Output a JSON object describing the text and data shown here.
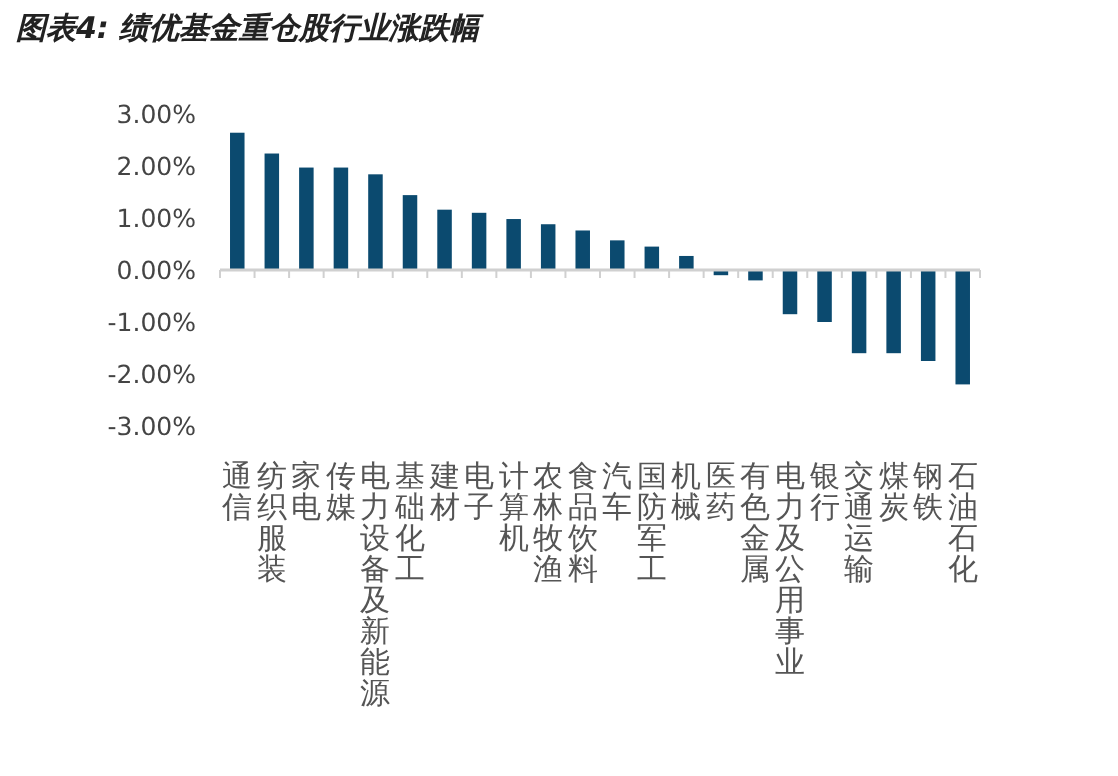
{
  "chart_data": {
    "type": "bar",
    "title": "图表4: 绩优基金重仓股行业涨跌幅",
    "categories": [
      "通信",
      "纺织服装",
      "家电",
      "传媒",
      "电力设备及新能源",
      "基础化工",
      "建材",
      "电子",
      "计算机",
      "农林牧渔",
      "食品饮料",
      "汽车",
      "国防军工",
      "机械",
      "医药",
      "有色金属",
      "电力及公用事业",
      "银行",
      "交通运输",
      "煤炭",
      "钢铁",
      "石油石化"
    ],
    "values": [
      2.64,
      2.24,
      1.97,
      1.97,
      1.84,
      1.44,
      1.16,
      1.1,
      0.98,
      0.88,
      0.76,
      0.57,
      0.45,
      0.27,
      -0.1,
      -0.2,
      -0.85,
      -1.0,
      -1.6,
      -1.6,
      -1.75,
      -2.2
    ],
    "color": "#0b4a6f",
    "ylim": [
      -3,
      3
    ],
    "yticks": [
      {
        "value": -3,
        "label": "-3.00%"
      },
      {
        "value": -2,
        "label": "-2.00%"
      },
      {
        "value": -1,
        "label": "-1.00%"
      },
      {
        "value": 0,
        "label": "0.00%"
      },
      {
        "value": 1,
        "label": "1.00%"
      },
      {
        "value": 2,
        "label": "2.00%"
      },
      {
        "value": 3,
        "label": "3.00%"
      }
    ]
  }
}
